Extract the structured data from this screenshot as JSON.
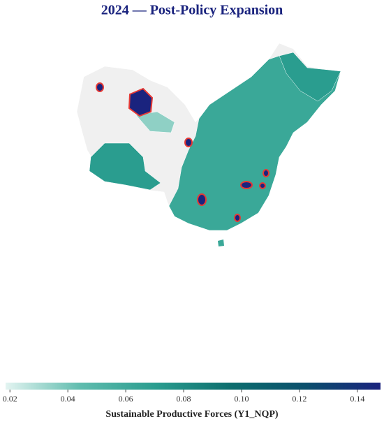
{
  "title": "2024 — Post-Policy Expansion",
  "colorbar": {
    "label": "Sustainable Productive Forces (Y1_NQP)",
    "range": [
      0.0185,
      0.148
    ],
    "ticks": [
      0.02,
      0.04,
      0.06,
      0.08,
      {
        "value": 0.1,
        "label": "0.10"
      },
      0.12,
      0.14
    ],
    "colors": [
      "#e3f4f1",
      "#5fbcae",
      "#2a9d8f",
      "#0d6e6e",
      "#0b4f6c",
      "#1a237e"
    ]
  }
}
